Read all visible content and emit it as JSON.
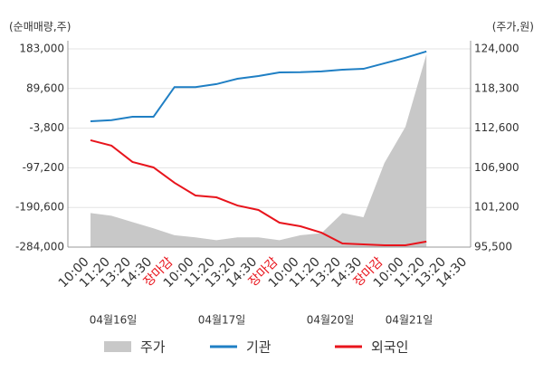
{
  "chart_data": {
    "type": "line",
    "y_label": "(순매매량,주)",
    "y2_label": "(주가,원)",
    "categories": [
      "10:00",
      "11:20",
      "13:20",
      "14:30",
      "장마감",
      "10:00",
      "11:20",
      "13:20",
      "14:30",
      "장마감",
      "10:00",
      "11:20",
      "13:20",
      "14:30",
      "장마감",
      "10:00",
      "11:20",
      "13:20",
      "14:30"
    ],
    "dates": [
      "04월16일",
      "04월17일",
      "04월20일",
      "04월21일"
    ],
    "ylim": [
      -284000,
      183000
    ],
    "yticks": [
      {
        "value": 183000,
        "label": "183,000"
      },
      {
        "value": 89600,
        "label": "89,600"
      },
      {
        "value": -3800,
        "label": "-3,800"
      },
      {
        "value": -97200,
        "label": "-97,200"
      },
      {
        "value": -190600,
        "label": "-190,600"
      },
      {
        "value": -284000,
        "label": "-284,000"
      }
    ],
    "y2lim": [
      95500,
      124000
    ],
    "y2ticks": [
      {
        "value": 124000,
        "label": "124,000"
      },
      {
        "value": 118300,
        "label": "118,300"
      },
      {
        "value": 112600,
        "label": "112,600"
      },
      {
        "value": 106900,
        "label": "106,900"
      },
      {
        "value": 101200,
        "label": "101,200"
      },
      {
        "value": 95500,
        "label": "95,500"
      }
    ],
    "grid": true,
    "series": [
      {
        "name": "주가",
        "color": "#c8c8c8",
        "kind": "area",
        "axis": "y2",
        "values": [
          100400,
          100000,
          99100,
          98200,
          97200,
          96900,
          96500,
          96900,
          96900,
          96500,
          97200,
          97500,
          100400,
          99800,
          107600,
          112800,
          123200,
          null,
          null
        ]
      },
      {
        "name": "기관",
        "color": "#1f7fc4",
        "kind": "line",
        "values": [
          12400,
          15000,
          23000,
          23000,
          93000,
          93000,
          100000,
          112600,
          119000,
          127600,
          128000,
          130000,
          134000,
          136000,
          149000,
          162000,
          177000,
          null,
          null
        ]
      },
      {
        "name": "외국인",
        "color": "#e8141c",
        "kind": "line",
        "values": [
          -32300,
          -45000,
          -83500,
          -96300,
          -132500,
          -162400,
          -166800,
          -186000,
          -196500,
          -226400,
          -235000,
          -250000,
          -275400,
          -277500,
          -279700,
          -279700,
          -271000,
          null,
          null
        ]
      }
    ]
  }
}
